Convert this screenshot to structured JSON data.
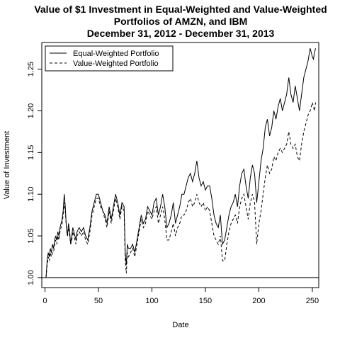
{
  "chart_data": {
    "type": "line",
    "title_lines": [
      "Value of $1 Investment in Equal-Weighted and Value-Weighted",
      "Portfolios of AMZN, and IBM",
      "December 31, 2012 - December 31, 2013"
    ],
    "xlabel": "Date",
    "ylabel": "Value of Investment",
    "xlim": [
      -3,
      256
    ],
    "ylim": [
      0.988,
      1.282
    ],
    "x_ticks": [
      0,
      50,
      100,
      150,
      200,
      250
    ],
    "y_ticks": [
      1.0,
      1.05,
      1.1,
      1.15,
      1.2,
      1.25
    ],
    "y_tick_labels": [
      "1.00",
      "1.05",
      "1.10",
      "1.15",
      "1.20",
      "1.25"
    ],
    "reference_line": 1.0,
    "legend_position": "top-left",
    "series": [
      {
        "name": "Equal-Weighted Portfolio",
        "style": "solid",
        "color": "#000000",
        "x": [
          1,
          2,
          3,
          4,
          5,
          6,
          7,
          8,
          9,
          10,
          11,
          12,
          13,
          14,
          15,
          16,
          17,
          18,
          19,
          20,
          21,
          22,
          23,
          24,
          25,
          26,
          27,
          28,
          29,
          30,
          32,
          34,
          36,
          38,
          40,
          42,
          44,
          46,
          48,
          50,
          52,
          54,
          56,
          58,
          60,
          62,
          64,
          66,
          68,
          70,
          72,
          74,
          75,
          76,
          77,
          78,
          80,
          82,
          84,
          86,
          88,
          90,
          92,
          94,
          96,
          98,
          100,
          102,
          104,
          106,
          108,
          110,
          112,
          114,
          116,
          118,
          120,
          122,
          124,
          126,
          128,
          130,
          132,
          134,
          136,
          138,
          140,
          142,
          144,
          146,
          148,
          150,
          152,
          154,
          156,
          158,
          160,
          162,
          164,
          166,
          168,
          170,
          172,
          174,
          176,
          178,
          180,
          182,
          184,
          186,
          188,
          190,
          192,
          194,
          196,
          198,
          200,
          202,
          204,
          206,
          208,
          210,
          212,
          214,
          216,
          218,
          220,
          222,
          224,
          226,
          228,
          230,
          232,
          234,
          236,
          238,
          240,
          242,
          244,
          246,
          248,
          250,
          251,
          252,
          253
        ],
        "y": [
          1.0,
          1.02,
          1.03,
          1.025,
          1.035,
          1.03,
          1.04,
          1.035,
          1.045,
          1.05,
          1.045,
          1.055,
          1.05,
          1.06,
          1.065,
          1.07,
          1.08,
          1.1,
          1.085,
          1.06,
          1.05,
          1.065,
          1.055,
          1.04,
          1.05,
          1.06,
          1.055,
          1.05,
          1.045,
          1.055,
          1.06,
          1.055,
          1.06,
          1.05,
          1.045,
          1.06,
          1.08,
          1.09,
          1.1,
          1.1,
          1.09,
          1.08,
          1.075,
          1.065,
          1.085,
          1.07,
          1.085,
          1.1,
          1.09,
          1.075,
          1.09,
          1.085,
          1.03,
          1.015,
          1.04,
          1.035,
          1.035,
          1.04,
          1.03,
          1.045,
          1.06,
          1.075,
          1.065,
          1.07,
          1.085,
          1.08,
          1.075,
          1.09,
          1.095,
          1.075,
          1.085,
          1.1,
          1.085,
          1.06,
          1.065,
          1.075,
          1.09,
          1.065,
          1.075,
          1.085,
          1.1,
          1.1,
          1.11,
          1.12,
          1.125,
          1.115,
          1.125,
          1.14,
          1.12,
          1.11,
          1.115,
          1.105,
          1.11,
          1.11,
          1.095,
          1.075,
          1.065,
          1.06,
          1.075,
          1.04,
          1.045,
          1.06,
          1.075,
          1.085,
          1.09,
          1.1,
          1.085,
          1.11,
          1.125,
          1.13,
          1.11,
          1.095,
          1.12,
          1.135,
          1.125,
          1.09,
          1.115,
          1.14,
          1.155,
          1.18,
          1.19,
          1.17,
          1.18,
          1.2,
          1.19,
          1.205,
          1.215,
          1.2,
          1.21,
          1.22,
          1.24,
          1.22,
          1.21,
          1.23,
          1.215,
          1.2,
          1.22,
          1.24,
          1.25,
          1.26,
          1.275,
          1.265,
          1.262,
          1.27,
          1.275
        ]
      },
      {
        "name": "Value-Weighted Portfolio",
        "style": "dashed",
        "color": "#000000",
        "x": [
          1,
          2,
          3,
          4,
          5,
          6,
          7,
          8,
          9,
          10,
          11,
          12,
          13,
          14,
          15,
          16,
          17,
          18,
          19,
          20,
          21,
          22,
          23,
          24,
          25,
          26,
          27,
          28,
          29,
          30,
          32,
          34,
          36,
          38,
          40,
          42,
          44,
          46,
          48,
          50,
          52,
          54,
          56,
          58,
          60,
          62,
          64,
          66,
          68,
          70,
          72,
          74,
          75,
          76,
          77,
          78,
          80,
          82,
          84,
          86,
          88,
          90,
          92,
          94,
          96,
          98,
          100,
          102,
          104,
          106,
          108,
          110,
          112,
          114,
          116,
          118,
          120,
          122,
          124,
          126,
          128,
          130,
          132,
          134,
          136,
          138,
          140,
          142,
          144,
          146,
          148,
          150,
          152,
          154,
          156,
          158,
          160,
          162,
          164,
          166,
          168,
          170,
          172,
          174,
          176,
          178,
          180,
          182,
          184,
          186,
          188,
          190,
          192,
          194,
          196,
          198,
          200,
          202,
          204,
          206,
          208,
          210,
          212,
          214,
          216,
          218,
          220,
          222,
          224,
          226,
          228,
          230,
          232,
          234,
          236,
          238,
          240,
          242,
          244,
          246,
          248,
          250,
          251,
          252,
          253
        ],
        "y": [
          1.0,
          1.015,
          1.025,
          1.02,
          1.03,
          1.025,
          1.03,
          1.03,
          1.04,
          1.045,
          1.04,
          1.05,
          1.045,
          1.055,
          1.06,
          1.065,
          1.075,
          1.09,
          1.08,
          1.06,
          1.05,
          1.06,
          1.05,
          1.04,
          1.045,
          1.055,
          1.05,
          1.045,
          1.04,
          1.05,
          1.055,
          1.05,
          1.055,
          1.045,
          1.04,
          1.055,
          1.075,
          1.085,
          1.095,
          1.095,
          1.085,
          1.08,
          1.07,
          1.06,
          1.08,
          1.065,
          1.08,
          1.095,
          1.085,
          1.07,
          1.085,
          1.08,
          1.02,
          1.005,
          1.03,
          1.025,
          1.03,
          1.035,
          1.025,
          1.04,
          1.055,
          1.07,
          1.06,
          1.065,
          1.08,
          1.075,
          1.07,
          1.08,
          1.085,
          1.065,
          1.075,
          1.085,
          1.07,
          1.045,
          1.045,
          1.055,
          1.065,
          1.05,
          1.06,
          1.065,
          1.075,
          1.075,
          1.08,
          1.09,
          1.095,
          1.085,
          1.09,
          1.1,
          1.09,
          1.085,
          1.09,
          1.08,
          1.085,
          1.08,
          1.065,
          1.05,
          1.045,
          1.04,
          1.05,
          1.02,
          1.02,
          1.04,
          1.055,
          1.065,
          1.07,
          1.075,
          1.065,
          1.085,
          1.095,
          1.1,
          1.085,
          1.07,
          1.09,
          1.1,
          1.09,
          1.04,
          1.065,
          1.08,
          1.1,
          1.12,
          1.135,
          1.125,
          1.13,
          1.145,
          1.14,
          1.15,
          1.155,
          1.15,
          1.155,
          1.16,
          1.175,
          1.16,
          1.155,
          1.16,
          1.145,
          1.14,
          1.16,
          1.175,
          1.185,
          1.195,
          1.2,
          1.21,
          1.205,
          1.2,
          1.21
        ]
      }
    ]
  }
}
